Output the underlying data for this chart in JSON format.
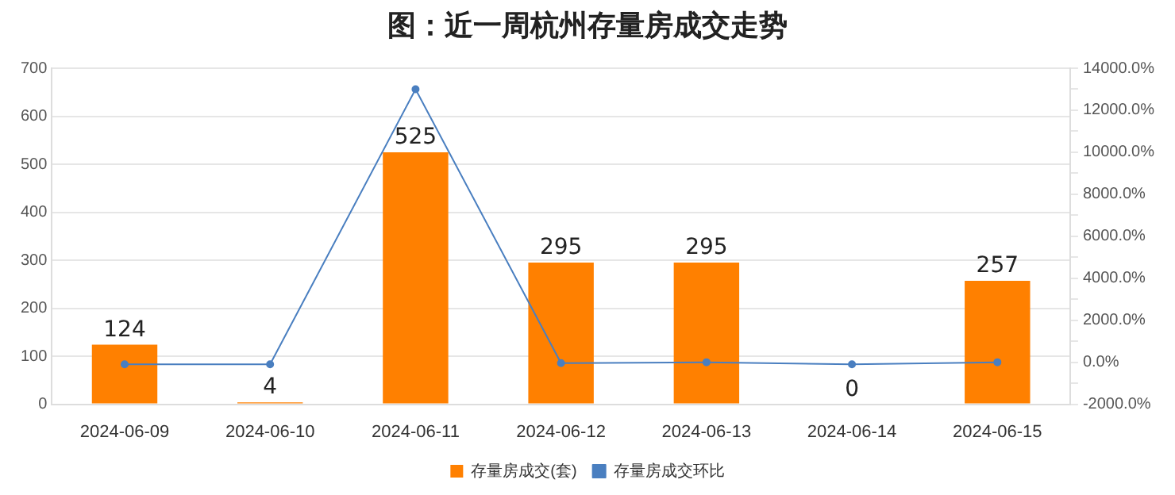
{
  "chart_data": {
    "type": "bar",
    "title": "图：近一周杭州存量房成交走势",
    "categories": [
      "2024-06-09",
      "2024-06-10",
      "2024-06-11",
      "2024-06-12",
      "2024-06-13",
      "2024-06-14",
      "2024-06-15"
    ],
    "series": [
      {
        "name": "存量房成交(套)",
        "color": "#ff8000",
        "values": [
          124,
          4,
          525,
          295,
          295,
          0,
          257
        ],
        "value_labels": [
          "124",
          "4",
          "525",
          "295",
          "295",
          "0",
          "257"
        ]
      },
      {
        "name": "存量房成交环比",
        "type": "line",
        "axis": "y2",
        "color": "#4a7fc0",
        "values": [
          -100,
          -100,
          13000,
          -40,
          0,
          -100,
          0
        ]
      }
    ],
    "ylim": [
      0,
      700
    ],
    "yticks": [
      0,
      100,
      200,
      300,
      400,
      500,
      600,
      700
    ],
    "y2lim": [
      -2000,
      14000
    ],
    "y2ticks": [
      {
        "value": -2000,
        "label": "-2000.0%"
      },
      {
        "value": -1000,
        "label": null
      },
      {
        "value": 0,
        "label": "0.0%"
      },
      {
        "value": 1000,
        "label": null
      },
      {
        "value": 2000,
        "label": "2000.0%"
      },
      {
        "value": 3000,
        "label": null
      },
      {
        "value": 4000,
        "label": "4000.0%"
      },
      {
        "value": 5000,
        "label": null
      },
      {
        "value": 6000,
        "label": "6000.0%"
      },
      {
        "value": 7000,
        "label": null
      },
      {
        "value": 8000,
        "label": "8000.0%"
      },
      {
        "value": 9000,
        "label": null
      },
      {
        "value": 10000,
        "label": "10000.0%"
      },
      {
        "value": 11000,
        "label": null
      },
      {
        "value": 12000,
        "label": "12000.0%"
      },
      {
        "value": 13000,
        "label": null
      },
      {
        "value": 14000,
        "label": "14000.0%"
      }
    ],
    "grid": "y",
    "legend": "bottom",
    "marker": "circle",
    "line_style": "solid"
  }
}
